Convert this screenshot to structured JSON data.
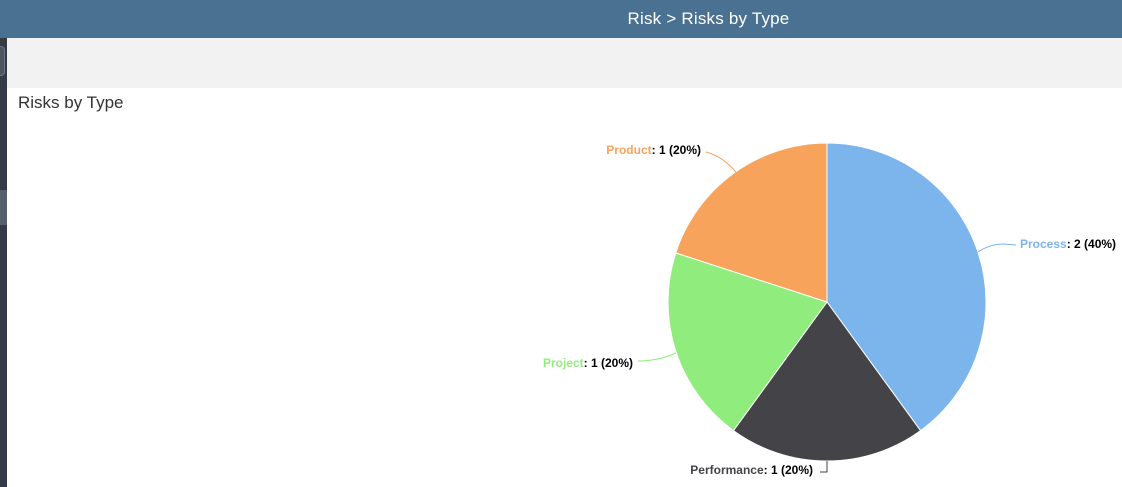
{
  "header": {
    "title": "Risk > Risks by Type",
    "bg_color": "#4a7191"
  },
  "page": {
    "title": "Risks by Type"
  },
  "chart_data": {
    "type": "pie",
    "title": "Risks by Type",
    "legend": "none",
    "start_angle_deg": 0,
    "direction": "clockwise",
    "label_format": "{name}: {value} ({pct}%)",
    "series": [
      {
        "name": "Risks by Type",
        "points": [
          {
            "label": "Process",
            "value": 2,
            "pct": 40,
            "color": "#7cb5ec"
          },
          {
            "label": "Performance",
            "value": 1,
            "pct": 20,
            "color": "#434348"
          },
          {
            "label": "Project",
            "value": 1,
            "pct": 20,
            "color": "#90ed7d"
          },
          {
            "label": "Product",
            "value": 1,
            "pct": 20,
            "color": "#f7a35c"
          }
        ]
      }
    ]
  }
}
